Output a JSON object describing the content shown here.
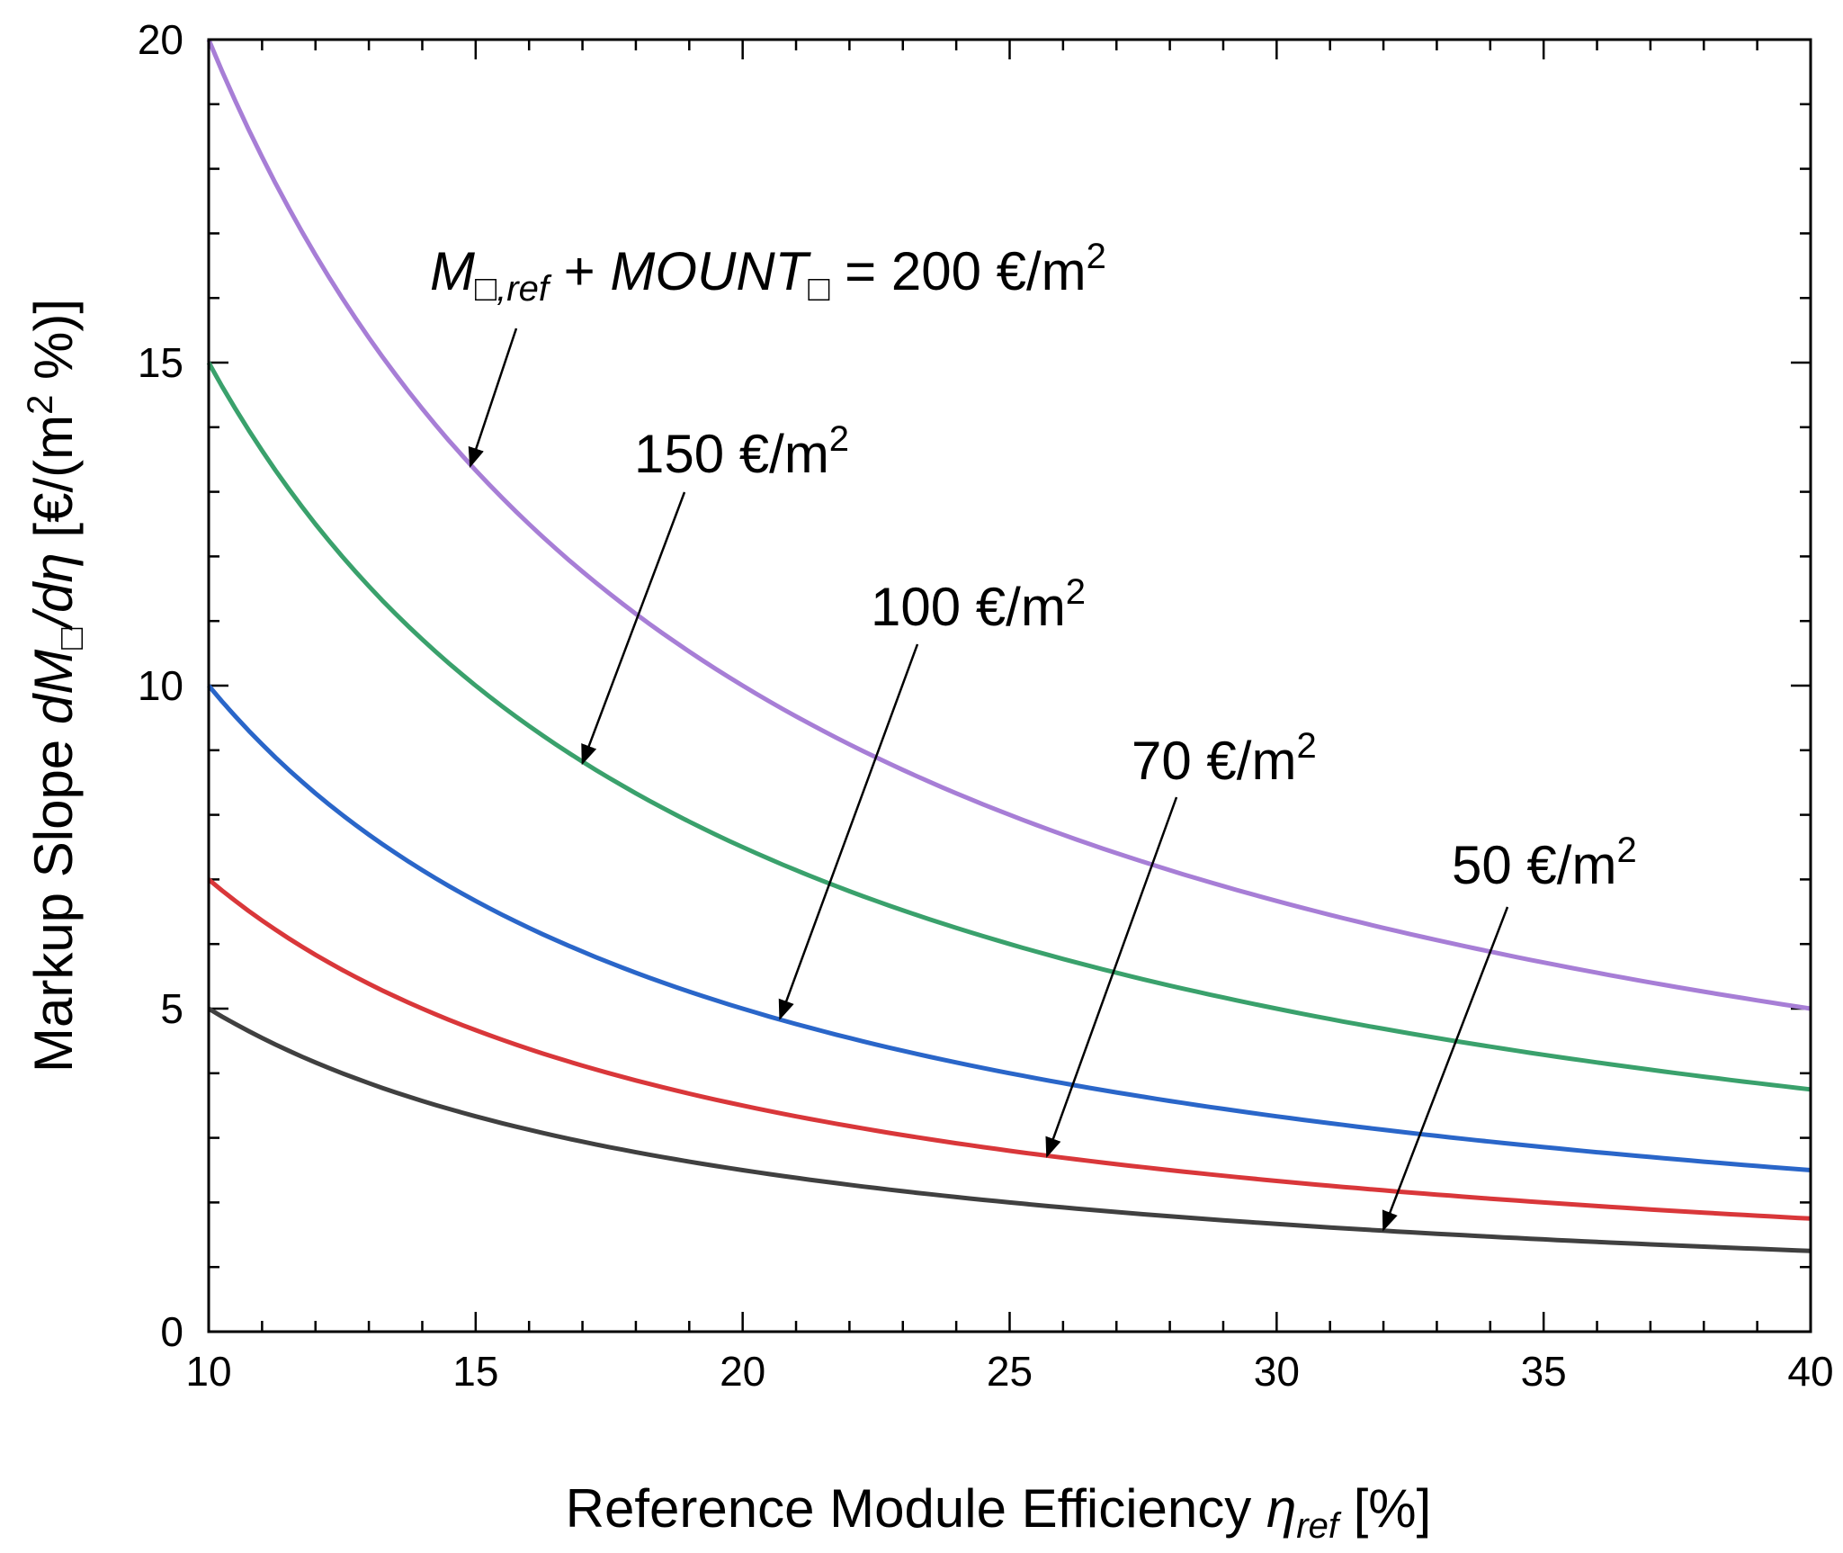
{
  "chart_data": {
    "type": "line",
    "xlabel": {
      "text": "Reference Module Efficiency",
      "symbol": "η",
      "subscript": "ref",
      "unit": "[%]"
    },
    "ylabel": {
      "prefix": "Markup Slope",
      "symbol_d": "dM",
      "box": "□",
      "slash_deta": "/dη",
      "unit": "[€/(m",
      "sup": "2",
      "unit_end": "%)]"
    },
    "xlim": [
      10,
      40
    ],
    "ylim": [
      0,
      20
    ],
    "x_ticks": [
      10,
      15,
      20,
      25,
      30,
      35,
      40
    ],
    "y_ticks": [
      0,
      5,
      10,
      15,
      20
    ],
    "x_tick_labels": [
      "10",
      "15",
      "20",
      "25",
      "30",
      "35",
      "40"
    ],
    "y_tick_labels": [
      "0",
      "5",
      "10",
      "15",
      "20"
    ],
    "series": [
      {
        "name": "200 €/m2",
        "cost": 200,
        "color": "#a77ed6",
        "x": [
          10,
          12.5,
          15,
          17.5,
          20,
          22.5,
          25,
          27.5,
          30,
          32.5,
          35,
          37.5,
          40
        ],
        "values": [
          20,
          16,
          13.33,
          11.43,
          10,
          8.89,
          8,
          7.27,
          6.67,
          6.15,
          5.71,
          5.33,
          5
        ]
      },
      {
        "name": "150 €/m2",
        "cost": 150,
        "color": "#3aa16c",
        "x": [
          10,
          12.5,
          15,
          17.5,
          20,
          22.5,
          25,
          27.5,
          30,
          32.5,
          35,
          37.5,
          40
        ],
        "values": [
          15,
          12,
          10,
          8.57,
          7.5,
          6.67,
          6,
          5.45,
          5,
          4.62,
          4.29,
          4,
          3.75
        ]
      },
      {
        "name": "100 €/m2",
        "cost": 100,
        "color": "#2a66c9",
        "x": [
          10,
          12.5,
          15,
          17.5,
          20,
          22.5,
          25,
          27.5,
          30,
          32.5,
          35,
          37.5,
          40
        ],
        "values": [
          10,
          8,
          6.67,
          5.71,
          5,
          4.44,
          4,
          3.64,
          3.33,
          3.08,
          2.86,
          2.67,
          2.5
        ]
      },
      {
        "name": "70 €/m2",
        "cost": 70,
        "color": "#d9373a",
        "x": [
          10,
          12.5,
          15,
          17.5,
          20,
          22.5,
          25,
          27.5,
          30,
          32.5,
          35,
          37.5,
          40
        ],
        "values": [
          7,
          5.6,
          4.67,
          4,
          3.5,
          3.11,
          2.8,
          2.55,
          2.33,
          2.15,
          2,
          1.87,
          1.75
        ]
      },
      {
        "name": "50 €/m2",
        "cost": 50,
        "color": "#404040",
        "x": [
          10,
          12.5,
          15,
          17.5,
          20,
          22.5,
          25,
          27.5,
          30,
          32.5,
          35,
          37.5,
          40
        ],
        "values": [
          5,
          4,
          3.33,
          2.86,
          2.5,
          2.22,
          2,
          1.82,
          1.67,
          1.54,
          1.43,
          1.33,
          1.25
        ]
      }
    ],
    "annotations": [
      {
        "series": "200 €/m2",
        "label_prefix": "M",
        "label_box": "□",
        "label_sub": ",ref",
        "label_mid": " + ",
        "label_mount": "MOUNT",
        "label_mount_box": "□",
        "label_value": " = 200 €/m",
        "sup": "2",
        "arrow_to": {
          "x": 14.9,
          "y": 13.4
        }
      },
      {
        "series": "150 €/m2",
        "label": "150 €/m",
        "sup": "2",
        "arrow_to": {
          "x": 17.0,
          "y": 8.8
        }
      },
      {
        "series": "100 €/m2",
        "label": "100 €/m",
        "sup": "2",
        "arrow_to": {
          "x": 20.7,
          "y": 4.85
        }
      },
      {
        "series": "70 €/m2",
        "label": "70 €/m",
        "sup": "2",
        "arrow_to": {
          "x": 25.7,
          "y": 2.72
        }
      },
      {
        "series": "50 €/m2",
        "label": "50 €/m",
        "sup": "2",
        "arrow_to": {
          "x": 32.0,
          "y": 1.58
        }
      }
    ]
  }
}
